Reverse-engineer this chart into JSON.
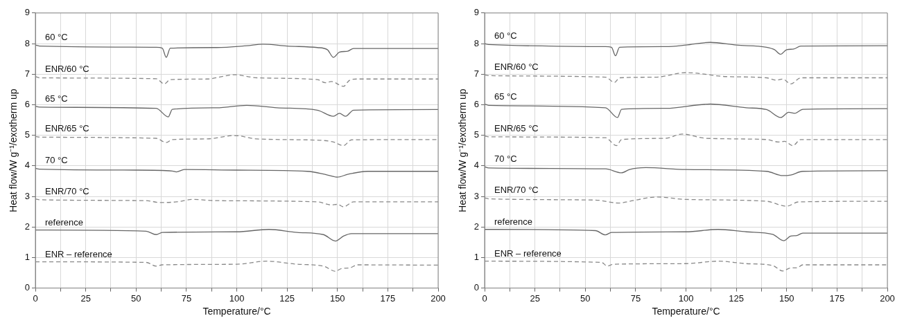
{
  "chart_data": [
    {
      "type": "line",
      "xlabel": "Temperature/°C",
      "ylabel": "Heat flow/W g⁻¹/exotherm up",
      "xlim": [
        0,
        200
      ],
      "ylim": [
        0,
        9
      ],
      "xticks": [
        0,
        {
          "value": 12.5,
          "label": null
        },
        25,
        {
          "value": 37.5,
          "label": null
        },
        50,
        {
          "value": 62.5,
          "label": null
        },
        75,
        {
          "value": 87.5,
          "label": null
        },
        100,
        {
          "value": 112.5,
          "label": null
        },
        125,
        {
          "value": 137.5,
          "label": null
        },
        150,
        {
          "value": 162.5,
          "label": null
        },
        175,
        {
          "value": 187.5,
          "label": null
        },
        200
      ],
      "yticks": [
        0,
        1,
        2,
        3,
        4,
        5,
        6,
        7,
        8,
        9
      ],
      "grid": true,
      "marker": "none",
      "series": [
        {
          "name": "60 °C",
          "color": "#666666",
          "line_style": "solid",
          "x": [
            0,
            2,
            60,
            63,
            65,
            67,
            90,
            105,
            113,
            125,
            140,
            145,
            148,
            151,
            155,
            158,
            200
          ],
          "values": [
            7.95,
            7.92,
            7.88,
            7.85,
            7.55,
            7.85,
            7.87,
            7.93,
            7.98,
            7.92,
            7.87,
            7.8,
            7.55,
            7.72,
            7.75,
            7.84,
            7.84
          ]
        },
        {
          "name": "ENR/60 °C",
          "color": "#888888",
          "line_style": "dashed",
          "x": [
            0,
            2,
            60,
            64,
            67,
            85,
            99,
            110,
            140,
            144,
            147,
            153,
            156,
            160,
            200
          ],
          "values": [
            6.92,
            6.88,
            6.85,
            6.68,
            6.82,
            6.84,
            6.98,
            6.88,
            6.82,
            6.72,
            6.76,
            6.6,
            6.8,
            6.84,
            6.84
          ]
        },
        {
          "name": "65 °C",
          "color": "#666666",
          "line_style": "solid",
          "x": [
            0,
            2,
            60,
            66,
            68,
            90,
            105,
            120,
            140,
            148,
            151,
            154,
            158,
            200
          ],
          "values": [
            5.95,
            5.92,
            5.88,
            5.6,
            5.85,
            5.9,
            5.98,
            5.9,
            5.82,
            5.62,
            5.72,
            5.62,
            5.82,
            5.84
          ]
        },
        {
          "name": "ENR/65 °C",
          "color": "#888888",
          "line_style": "dashed",
          "x": [
            0,
            2,
            60,
            65,
            68,
            85,
            99,
            110,
            140,
            148,
            153,
            157,
            200
          ],
          "values": [
            4.96,
            4.94,
            4.9,
            4.76,
            4.86,
            4.88,
            4.99,
            4.88,
            4.84,
            4.78,
            4.66,
            4.85,
            4.86
          ]
        },
        {
          "name": "70 °C",
          "color": "#666666",
          "line_style": "solid",
          "x": [
            0,
            2,
            50,
            68,
            70,
            74,
            100,
            135,
            145,
            150,
            155,
            165,
            200
          ],
          "values": [
            3.92,
            3.89,
            3.86,
            3.83,
            3.8,
            3.88,
            3.86,
            3.82,
            3.7,
            3.63,
            3.72,
            3.82,
            3.82
          ]
        },
        {
          "name": "ENR/70 °C",
          "color": "#888888",
          "line_style": "dashed",
          "x": [
            0,
            2,
            55,
            62,
            70,
            78,
            90,
            140,
            147,
            150,
            153,
            158,
            200
          ],
          "values": [
            2.92,
            2.89,
            2.86,
            2.8,
            2.82,
            2.9,
            2.86,
            2.82,
            2.72,
            2.74,
            2.66,
            2.82,
            2.82
          ]
        },
        {
          "name": "reference",
          "color": "#666666",
          "line_style": "solid",
          "x": [
            0,
            55,
            60,
            63,
            100,
            116,
            130,
            143,
            149,
            153,
            157,
            200
          ],
          "values": [
            1.9,
            1.86,
            1.75,
            1.82,
            1.84,
            1.92,
            1.82,
            1.75,
            1.54,
            1.7,
            1.78,
            1.78
          ]
        },
        {
          "name": "ENR – reference",
          "color": "#888888",
          "line_style": "dashed",
          "x": [
            0,
            55,
            60,
            63,
            100,
            115,
            130,
            143,
            149,
            152,
            156,
            160,
            200
          ],
          "values": [
            0.86,
            0.84,
            0.72,
            0.76,
            0.78,
            0.88,
            0.78,
            0.72,
            0.55,
            0.64,
            0.66,
            0.76,
            0.75
          ]
        }
      ]
    },
    {
      "type": "line",
      "xlabel": "Temperature/°C",
      "ylabel": "Heat flow/W g⁻¹/exotherm up",
      "xlim": [
        0,
        200
      ],
      "ylim": [
        0,
        9
      ],
      "xticks": [
        0,
        {
          "value": 12.5,
          "label": null
        },
        25,
        {
          "value": 37.5,
          "label": null
        },
        50,
        {
          "value": 62.5,
          "label": null
        },
        75,
        {
          "value": 87.5,
          "label": null
        },
        100,
        {
          "value": 112.5,
          "label": null
        },
        125,
        {
          "value": 137.5,
          "label": null
        },
        150,
        {
          "value": 162.5,
          "label": null
        },
        175,
        {
          "value": 187.5,
          "label": null
        },
        200
      ],
      "yticks": [
        0,
        1,
        2,
        3,
        4,
        5,
        6,
        7,
        8,
        9
      ],
      "grid": true,
      "marker": "none",
      "series": [
        {
          "name": "60 °C",
          "color": "#666666",
          "line_style": "solid",
          "x": [
            0,
            2,
            60,
            63,
            65,
            67,
            90,
            100,
            112,
            125,
            140,
            144,
            147,
            150,
            153.5,
            157,
            200
          ],
          "values": [
            8.0,
            7.97,
            7.9,
            7.88,
            7.6,
            7.88,
            7.9,
            7.95,
            8.04,
            7.95,
            7.88,
            7.8,
            7.65,
            7.8,
            7.82,
            7.92,
            7.93
          ]
        },
        {
          "name": "ENR/60 °C",
          "color": "#888888",
          "line_style": "dashed",
          "x": [
            0,
            2,
            60,
            64.5,
            67,
            85,
            100,
            120,
            140,
            145,
            148,
            152,
            157,
            200
          ],
          "values": [
            6.98,
            6.95,
            6.9,
            6.73,
            6.88,
            6.9,
            7.05,
            6.92,
            6.88,
            6.8,
            6.84,
            6.68,
            6.88,
            6.88
          ]
        },
        {
          "name": "65 °C",
          "color": "#666666",
          "line_style": "solid",
          "x": [
            0,
            2,
            60,
            66,
            68,
            90,
            112,
            130,
            140,
            147,
            151,
            154,
            158,
            200
          ],
          "values": [
            6.02,
            5.98,
            5.9,
            5.58,
            5.85,
            5.88,
            6.02,
            5.9,
            5.84,
            5.58,
            5.75,
            5.72,
            5.85,
            5.87
          ]
        },
        {
          "name": "ENR/65 °C",
          "color": "#888888",
          "line_style": "dashed",
          "x": [
            0,
            2,
            60,
            65.5,
            68,
            90,
            98,
            110,
            140,
            146,
            149,
            153,
            157,
            200
          ],
          "values": [
            4.98,
            4.95,
            4.92,
            4.66,
            4.86,
            4.9,
            5.04,
            4.9,
            4.86,
            4.78,
            4.8,
            4.66,
            4.86,
            4.86
          ]
        },
        {
          "name": "70 °C",
          "color": "#666666",
          "line_style": "solid",
          "x": [
            0,
            2,
            60,
            68,
            72,
            80,
            100,
            140,
            148,
            152,
            158,
            200
          ],
          "values": [
            3.97,
            3.93,
            3.9,
            3.77,
            3.88,
            3.94,
            3.88,
            3.82,
            3.68,
            3.7,
            3.82,
            3.84
          ]
        },
        {
          "name": "ENR/70 °C",
          "color": "#888888",
          "line_style": "dashed",
          "x": [
            0,
            2,
            55,
            67,
            72,
            86,
            100,
            140,
            150,
            156,
            200
          ],
          "values": [
            2.95,
            2.92,
            2.88,
            2.78,
            2.84,
            2.98,
            2.9,
            2.84,
            2.68,
            2.82,
            2.84
          ]
        },
        {
          "name": "reference",
          "color": "#666666",
          "line_style": "solid",
          "x": [
            0,
            55,
            60,
            63,
            100,
            116,
            130,
            143,
            148.5,
            152,
            155,
            158,
            200
          ],
          "values": [
            1.92,
            1.88,
            1.74,
            1.82,
            1.84,
            1.92,
            1.84,
            1.76,
            1.55,
            1.7,
            1.72,
            1.8,
            1.8
          ]
        },
        {
          "name": "ENR – reference",
          "color": "#888888",
          "line_style": "dashed",
          "x": [
            0,
            58,
            61,
            64,
            100,
            116,
            130,
            143,
            148,
            152,
            155,
            158,
            200
          ],
          "values": [
            0.88,
            0.84,
            0.72,
            0.78,
            0.8,
            0.88,
            0.8,
            0.74,
            0.56,
            0.66,
            0.66,
            0.76,
            0.76
          ]
        }
      ]
    }
  ]
}
